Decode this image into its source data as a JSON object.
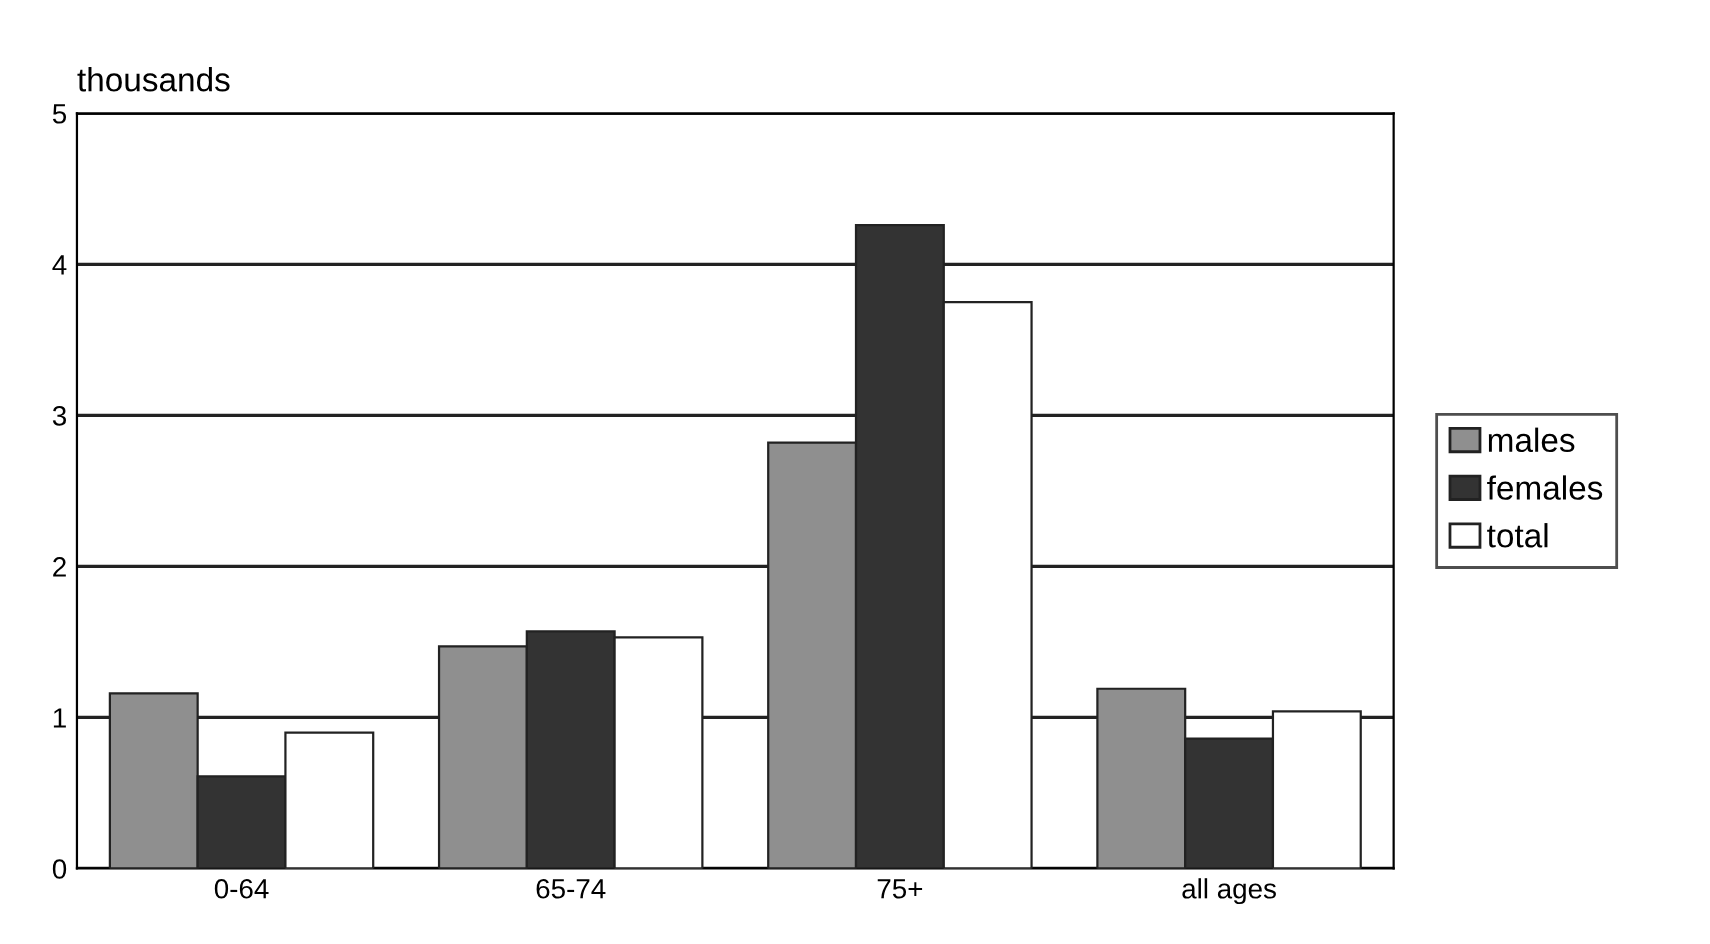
{
  "chart_data": {
    "type": "bar",
    "ylabel": "thousands",
    "categories": [
      "0-64",
      "65-74",
      "75+",
      "all ages"
    ],
    "series": [
      {
        "name": "males",
        "color": "#8f8f8f",
        "values": [
          1.16,
          1.47,
          2.82,
          1.19
        ]
      },
      {
        "name": "females",
        "color": "#333333",
        "values": [
          0.61,
          1.57,
          4.26,
          0.86
        ]
      },
      {
        "name": "total",
        "color": "#ffffff",
        "values": [
          0.9,
          1.53,
          3.75,
          1.04
        ]
      }
    ],
    "ylim": [
      0,
      5
    ],
    "yticks": [
      0,
      1,
      2,
      3,
      4,
      5
    ],
    "grid": "y",
    "legend": "right"
  }
}
